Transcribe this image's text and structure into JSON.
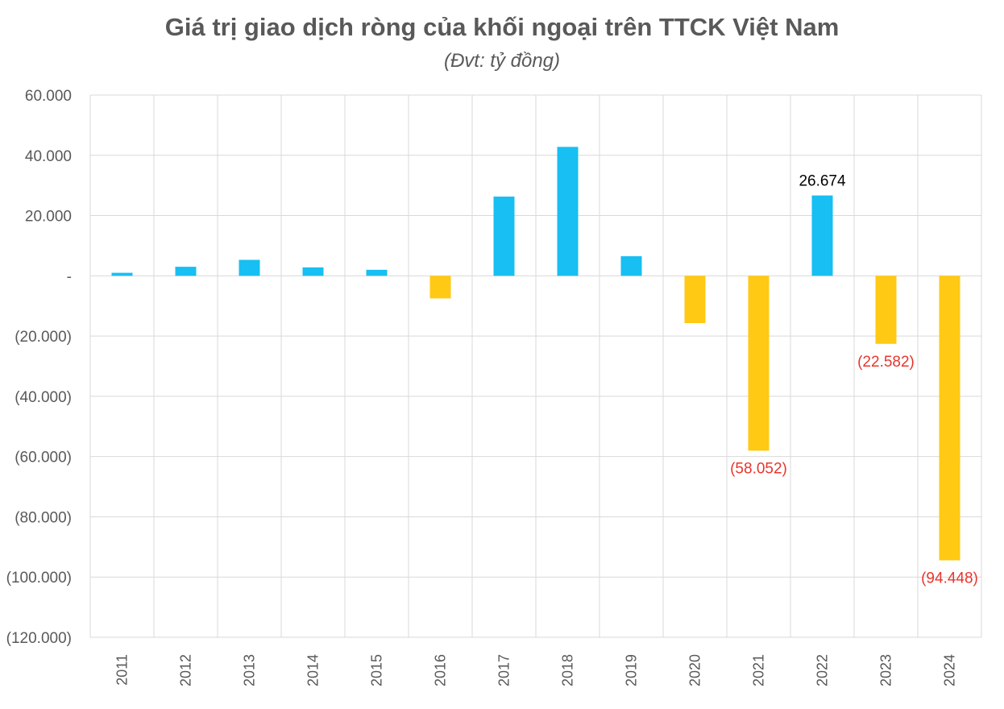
{
  "chart_data": {
    "type": "bar",
    "title": "Giá trị giao dịch ròng của khối ngoại trên TTCK Việt Nam",
    "subtitle": "(Đvt: tỷ đồng)",
    "categories": [
      "2011",
      "2012",
      "2013",
      "2014",
      "2015",
      "2016",
      "2017",
      "2018",
      "2019",
      "2020",
      "2021",
      "2022",
      "2023",
      "2024"
    ],
    "values": [
      1000,
      3000,
      5300,
      2800,
      2000,
      -7500,
      26300,
      42800,
      6500,
      -15700,
      -58052,
      26674,
      -22582,
      -94448
    ],
    "ylim": [
      -120000,
      60000
    ],
    "yticks": [
      {
        "value": 60000,
        "label": "60.000"
      },
      {
        "value": 40000,
        "label": "40.000"
      },
      {
        "value": 20000,
        "label": "20.000"
      },
      {
        "value": 0,
        "label": "-"
      },
      {
        "value": -20000,
        "label": "(20.000)"
      },
      {
        "value": -40000,
        "label": "(40.000)"
      },
      {
        "value": -60000,
        "label": "(60.000)"
      },
      {
        "value": -80000,
        "label": "(80.000)"
      },
      {
        "value": -100000,
        "label": "(100.000)"
      },
      {
        "value": -120000,
        "label": "(120.000)"
      }
    ],
    "data_labels": [
      {
        "category": "2021",
        "text": "(58.052)"
      },
      {
        "category": "2022",
        "text": "26.674"
      },
      {
        "category": "2023",
        "text": "(22.582)"
      },
      {
        "category": "2024",
        "text": "(94.448)"
      }
    ],
    "colors": {
      "positive": "#17BFF2",
      "negative": "#FFC914",
      "grid": "#D9D9D9",
      "positive_label": "#000000",
      "negative_label": "#E8352C"
    },
    "grid": true
  }
}
